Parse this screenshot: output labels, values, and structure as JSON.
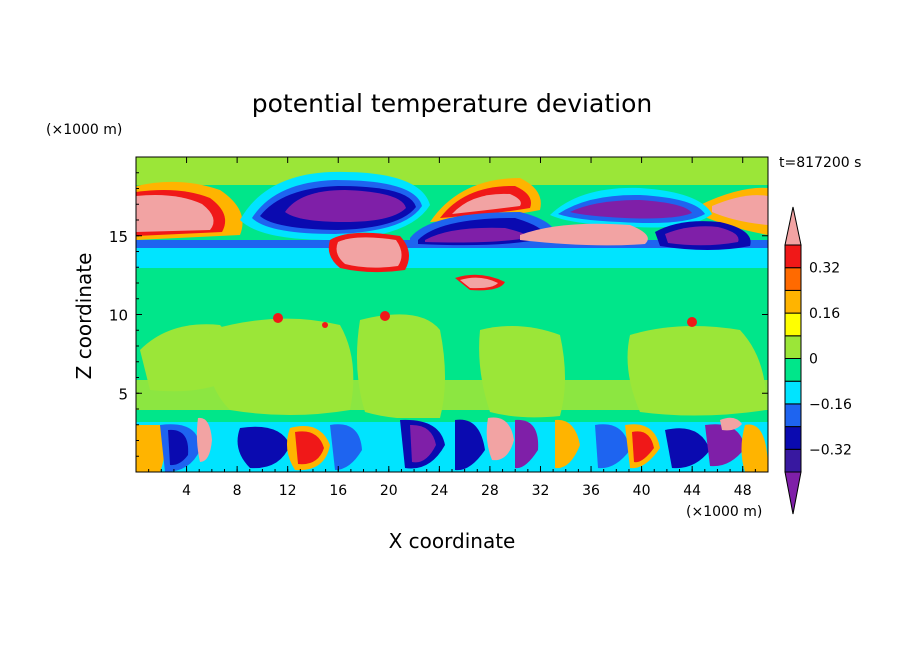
{
  "chart_data": {
    "type": "heatmap",
    "title": "potential temperature deviation",
    "time_label": "t=817200 s",
    "xlabel": "X coordinate",
    "ylabel": "Z coordinate",
    "x_unit": "(×1000 m)",
    "y_unit": "(×1000 m)",
    "xlim": [
      0,
      50
    ],
    "ylim": [
      0,
      20
    ],
    "x_ticks": [
      "4",
      "8",
      "12",
      "16",
      "20",
      "24",
      "28",
      "32",
      "36",
      "40",
      "44",
      "48"
    ],
    "y_ticks": [
      "5",
      "10",
      "15"
    ],
    "colorbar": {
      "labels": [
        "0.32",
        "0.16",
        "0",
        "−0.16",
        "−0.32"
      ],
      "levels": [
        -0.4,
        -0.32,
        -0.24,
        -0.16,
        -0.08,
        0,
        0.08,
        0.16,
        0.24,
        0.32,
        0.4
      ],
      "colors": [
        "#7f1fa8",
        "#3818a0",
        "#0a0ab0",
        "#1e64f0",
        "#00e4ff",
        "#00e68a",
        "#9be638",
        "#ffff00",
        "#ffb400",
        "#ff6a00",
        "#f01818",
        "#f2a3a3"
      ]
    },
    "grid": false,
    "legend": "right"
  }
}
